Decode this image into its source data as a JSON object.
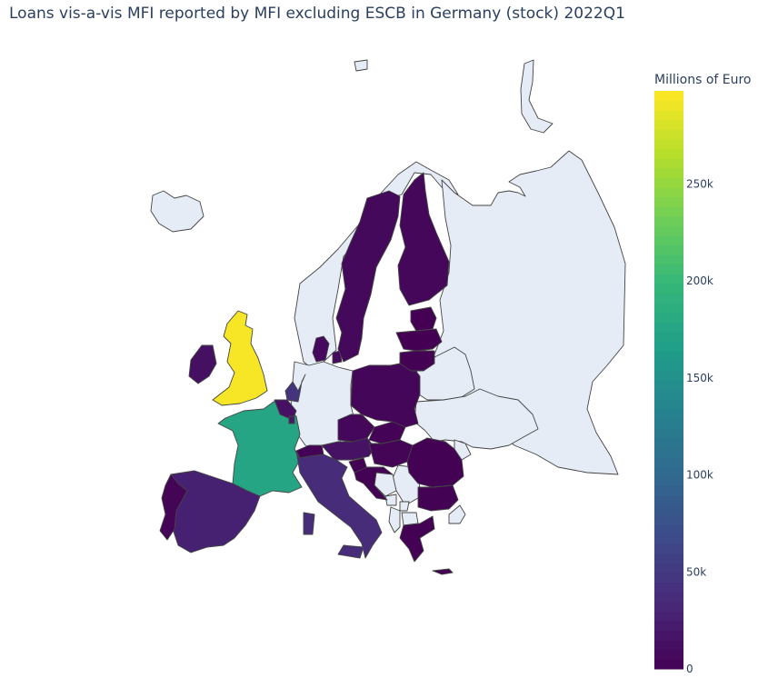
{
  "title": "Loans vis-a-vis MFI reported by MFI excluding ESCB in Germany (stock) 2022Q1",
  "colorbar": {
    "title": "Millions of Euro",
    "ticks": [
      {
        "value": 0,
        "label": "0"
      },
      {
        "value": 50000,
        "label": "50k"
      },
      {
        "value": 100000,
        "label": "100k"
      },
      {
        "value": 150000,
        "label": "150k"
      },
      {
        "value": 200000,
        "label": "200k"
      },
      {
        "value": 250000,
        "label": "250k"
      }
    ],
    "range": [
      0,
      298000
    ],
    "colorscale": [
      "#440154",
      "#482878",
      "#3e4989",
      "#31688e",
      "#26828e",
      "#1f9e89",
      "#35b779",
      "#6ece58",
      "#b5de2b",
      "#fde725"
    ]
  },
  "colors": {
    "no_data": "#e5ecf6",
    "border": "#444444",
    "text": "#2a3f5f"
  },
  "chart_data": {
    "type": "choropleth",
    "scope": "europe",
    "unit": "Millions of Euro",
    "regions": [
      {
        "country": "United Kingdom",
        "value": 295000
      },
      {
        "country": "France",
        "value": 175000
      },
      {
        "country": "Spain",
        "value": 27000
      },
      {
        "country": "Italy",
        "value": 37000
      },
      {
        "country": "Netherlands",
        "value": 45000
      },
      {
        "country": "Belgium",
        "value": 14000
      },
      {
        "country": "Luxembourg",
        "value": 20000
      },
      {
        "country": "Portugal",
        "value": 3000
      },
      {
        "country": "Ireland",
        "value": 13000
      },
      {
        "country": "Austria",
        "value": 15000
      },
      {
        "country": "Switzerland",
        "value": 2000
      },
      {
        "country": "Denmark",
        "value": 8000
      },
      {
        "country": "Sweden",
        "value": 7000
      },
      {
        "country": "Norway",
        "value": 2000
      },
      {
        "country": "Finland",
        "value": 5000
      },
      {
        "country": "Poland",
        "value": 4000
      },
      {
        "country": "Czechia",
        "value": 5000
      },
      {
        "country": "Slovakia",
        "value": 2000
      },
      {
        "country": "Hungary",
        "value": 3000
      },
      {
        "country": "Slovenia",
        "value": 1000
      },
      {
        "country": "Croatia",
        "value": 1000
      },
      {
        "country": "Romania",
        "value": 1000
      },
      {
        "country": "Bulgaria",
        "value": 500
      },
      {
        "country": "Greece",
        "value": 1000
      },
      {
        "country": "Cyprus",
        "value": 500
      },
      {
        "country": "Estonia",
        "value": 200
      },
      {
        "country": "Latvia",
        "value": 300
      },
      {
        "country": "Lithuania",
        "value": 500
      }
    ]
  }
}
